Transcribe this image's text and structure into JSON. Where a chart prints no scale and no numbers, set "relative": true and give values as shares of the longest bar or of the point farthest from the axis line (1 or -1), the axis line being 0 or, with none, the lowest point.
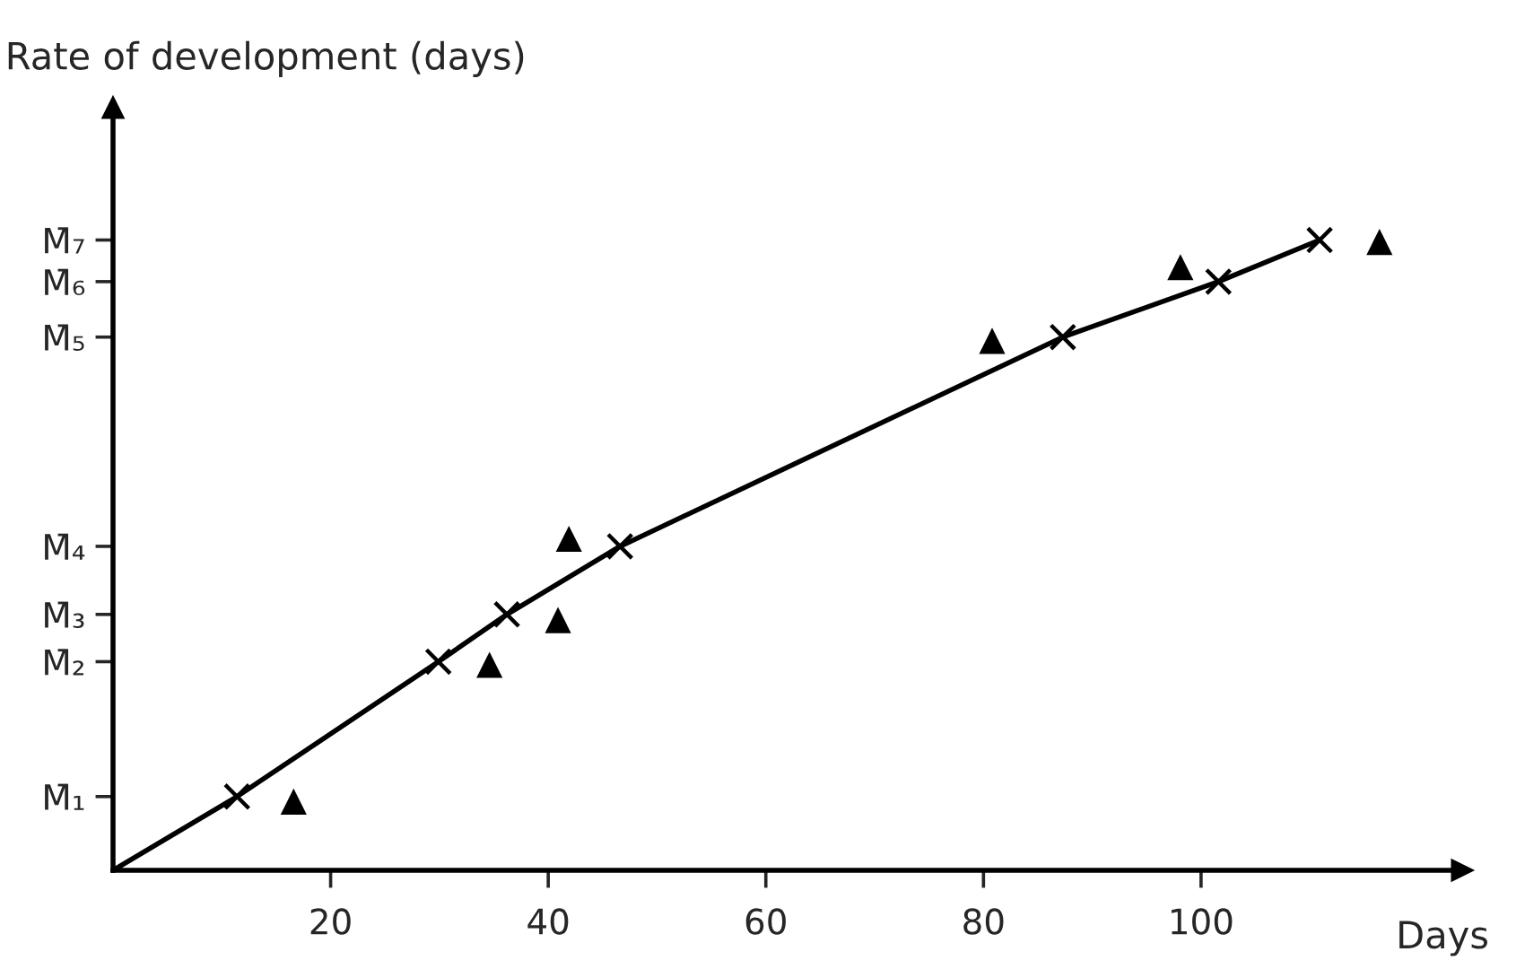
{
  "chart_data": {
    "type": "line",
    "relative": true,
    "xlabel": "Days",
    "ylabel": "Rate of development (days)",
    "xlim": [
      0,
      124
    ],
    "xticks": [
      20,
      40,
      60,
      80,
      100
    ],
    "grid": false,
    "legend": false,
    "series": [
      {
        "color": "#000000",
        "marker": "none",
        "line_style": "solid",
        "x": [
          0,
          11.4,
          29.9,
          36.2,
          46.6,
          87.3,
          101.6,
          110.9
        ],
        "values": [
          0,
          0.117,
          0.331,
          0.406,
          0.514,
          0.846,
          0.934,
          1.0
        ]
      },
      {
        "type": "scatter",
        "color": "#000000",
        "marker": "cross",
        "x": [
          11.4,
          29.9,
          36.2,
          46.6,
          87.3,
          101.6,
          110.9
        ],
        "values": [
          0.117,
          0.331,
          0.406,
          0.514,
          0.846,
          0.934,
          1.0
        ]
      },
      {
        "type": "scatter",
        "color": "#000000",
        "marker": "triangle",
        "x": [
          16.6,
          34.6,
          40.9,
          41.9,
          80.8,
          98.1,
          116.4
        ],
        "values": [
          0.109,
          0.326,
          0.397,
          0.526,
          0.84,
          0.957,
          0.997
        ]
      }
    ],
    "annotations": [
      "M̄₁",
      "M̄₂",
      "M̄₃",
      "M̄₄",
      "M̄₅",
      "M̄₆",
      "M̄₇"
    ]
  }
}
